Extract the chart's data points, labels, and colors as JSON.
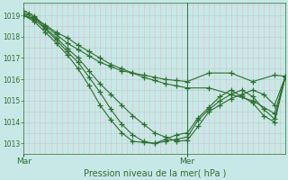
{
  "background_color": "#c8e8e8",
  "plot_bg_color": "#c8e8e8",
  "line_color": "#2d6e2d",
  "grid_color_v": "#e8b8b8",
  "grid_color_h": "#a8d4d4",
  "xlabel": "Pression niveau de la mer( hPa )",
  "ylim": [
    1012.5,
    1019.6
  ],
  "xlim": [
    0,
    48
  ],
  "yticks": [
    1013,
    1014,
    1015,
    1016,
    1017,
    1018,
    1019
  ],
  "xtick_labels": [
    "Mar",
    "Mer"
  ],
  "xtick_pos": [
    0,
    30
  ],
  "vline_x": 30,
  "marker": "+",
  "markersize": 4,
  "linewidth": 0.8,
  "lines": [
    [
      0,
      1019.2,
      1,
      1019.1,
      2,
      1018.95,
      4,
      1018.5,
      6,
      1018.1,
      8,
      1017.7,
      10,
      1017.4,
      12,
      1017.1,
      14,
      1016.8,
      16,
      1016.6,
      18,
      1016.4,
      20,
      1016.3,
      22,
      1016.2,
      24,
      1016.1,
      26,
      1016.0,
      28,
      1015.95,
      30,
      1015.9,
      34,
      1016.3,
      38,
      1016.3,
      42,
      1015.9,
      46,
      1016.2,
      48,
      1016.15
    ],
    [
      0,
      1019.1,
      2,
      1018.9,
      4,
      1018.4,
      6,
      1017.95,
      8,
      1017.45,
      10,
      1017.0,
      12,
      1016.4,
      14,
      1015.8,
      16,
      1015.3,
      18,
      1014.8,
      20,
      1014.3,
      22,
      1013.9,
      24,
      1013.5,
      26,
      1013.3,
      28,
      1013.1,
      30,
      1013.15,
      32,
      1013.8,
      34,
      1014.5,
      36,
      1014.8,
      38,
      1015.1,
      40,
      1015.3,
      42,
      1015.5,
      44,
      1015.3,
      46,
      1014.8,
      48,
      1016.15
    ],
    [
      0,
      1019.0,
      2,
      1018.8,
      4,
      1018.35,
      6,
      1017.85,
      8,
      1017.3,
      10,
      1016.8,
      12,
      1016.1,
      14,
      1015.4,
      16,
      1014.6,
      18,
      1013.9,
      20,
      1013.4,
      22,
      1013.1,
      24,
      1013.0,
      26,
      1013.1,
      28,
      1013.2,
      30,
      1013.3,
      32,
      1014.1,
      34,
      1014.6,
      36,
      1015.0,
      38,
      1015.3,
      40,
      1015.5,
      42,
      1015.2,
      44,
      1014.6,
      46,
      1014.15,
      48,
      1016.15
    ],
    [
      0,
      1019.0,
      2,
      1018.7,
      4,
      1018.2,
      6,
      1017.7,
      8,
      1017.15,
      10,
      1016.5,
      12,
      1015.7,
      14,
      1014.8,
      16,
      1014.1,
      18,
      1013.5,
      20,
      1013.1,
      22,
      1013.05,
      24,
      1013.0,
      26,
      1013.2,
      28,
      1013.4,
      30,
      1013.5,
      32,
      1014.2,
      34,
      1014.7,
      36,
      1015.2,
      38,
      1015.5,
      40,
      1015.2,
      42,
      1014.9,
      44,
      1014.3,
      46,
      1014.0,
      48,
      1016.15
    ],
    [
      0,
      1019.0,
      2,
      1018.85,
      4,
      1018.55,
      6,
      1018.2,
      8,
      1017.95,
      10,
      1017.6,
      12,
      1017.3,
      14,
      1017.0,
      16,
      1016.7,
      18,
      1016.5,
      20,
      1016.3,
      22,
      1016.1,
      24,
      1015.95,
      26,
      1015.8,
      28,
      1015.7,
      30,
      1015.6,
      34,
      1015.6,
      38,
      1015.3,
      42,
      1015.0,
      46,
      1014.4,
      48,
      1016.15
    ]
  ]
}
